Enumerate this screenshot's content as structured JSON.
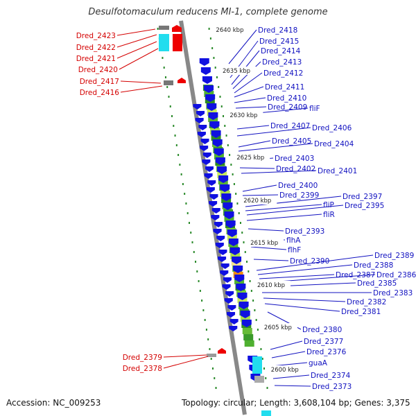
{
  "title": "Desulfotomaculum reducens MI-1, complete genome",
  "footer": {
    "accession": "Accession: NC_009253",
    "topology": "Topology: circular; Length: 3,608,104 bp; Genes: 3,375"
  },
  "colors": {
    "left_label": "#d40000",
    "right_label": "#1010c0",
    "forward_gene": "#ee0000",
    "reverse_gene": "#1010e0",
    "backbone": "#888888",
    "dots": "#2a8a2a"
  },
  "kbp_labels": [
    "2640 kbp",
    "2635 kbp",
    "2630 kbp",
    "2625 kbp",
    "2620 kbp",
    "2615 kbp",
    "2610 kbp",
    "2605 kbp",
    "2600 kbp"
  ],
  "left_genes": [
    "Dred_2423",
    "Dred_2422",
    "Dred_2421",
    "Dred_2420",
    "Dred_2417",
    "Dred_2416",
    "Dred_2379",
    "Dred_2378"
  ],
  "right_genes": [
    "Dred_2418",
    "Dred_2415",
    "Dred_2414",
    "Dred_2413",
    "Dred_2412",
    "Dred_2411",
    "Dred_2410",
    "Dred_2409",
    "fliF",
    "Dred_2407",
    "Dred_2406",
    "Dred_2405",
    "Dred_2404",
    "Dred_2403",
    "Dred_2402",
    "Dred_2401",
    "Dred_2400",
    "Dred_2399",
    "Dred_2397",
    "fliP",
    "Dred_2395",
    "fliR",
    "Dred_2393",
    "flhA",
    "flhF",
    "Dred_2390",
    "Dred_2389",
    "Dred_2388",
    "Dred_2387",
    "Dred_2386",
    "Dred_2385",
    "Dred_2383",
    "Dred_2382",
    "Dred_2381",
    "Dred_2380",
    "Dred_2377",
    "Dred_2376",
    "guaA",
    "Dred_2374",
    "Dred_2373"
  ]
}
